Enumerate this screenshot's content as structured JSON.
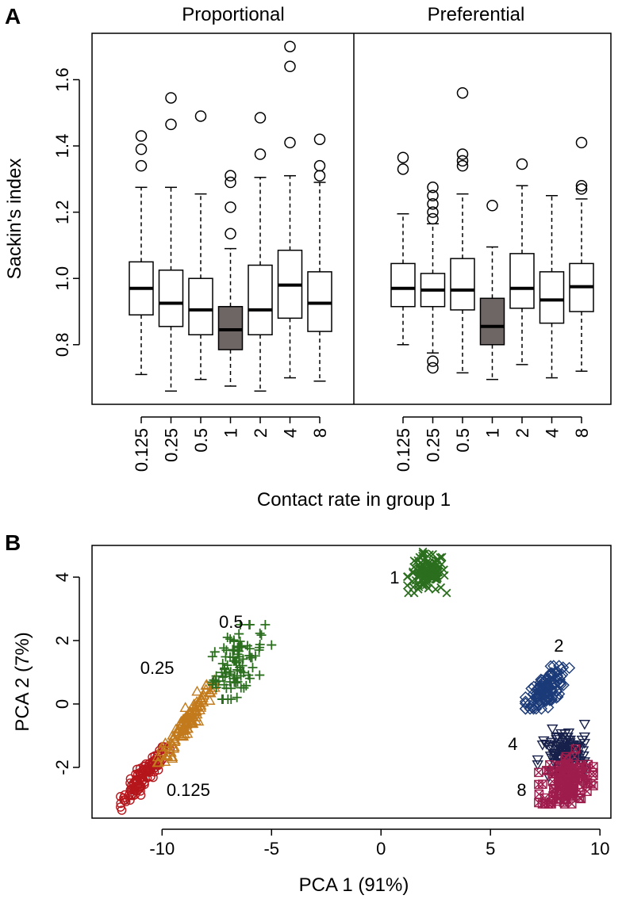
{
  "panel_a": {
    "label": "A",
    "facet_titles": [
      "Proportional",
      "Preferential"
    ]
  },
  "panel_b": {
    "label": "B"
  },
  "chart_data": [
    {
      "type": "boxplot",
      "panel": "A",
      "ylabel": "Sackin's index",
      "xlabel": "Contact rate in group 1",
      "ylim": [
        0.62,
        1.74
      ],
      "yticks": [
        "0.8",
        "1.0",
        "1.2",
        "1.4",
        "1.6"
      ],
      "ytick_values": [
        0.8,
        1.0,
        1.2,
        1.4,
        1.6
      ],
      "categories": [
        "0.125",
        "0.25",
        "0.5",
        "1",
        "2",
        "4",
        "8"
      ],
      "highlight_category": "1",
      "highlight_color": "#6e6565",
      "series": [
        {
          "name": "Proportional",
          "boxes": [
            {
              "whisker_low": 0.71,
              "q1": 0.89,
              "median": 0.97,
              "q3": 1.05,
              "whisker_high": 1.275,
              "outliers": [
                1.34,
                1.39,
                1.43
              ]
            },
            {
              "whisker_low": 0.66,
              "q1": 0.855,
              "median": 0.925,
              "q3": 1.025,
              "whisker_high": 1.275,
              "outliers": [
                1.465,
                1.545
              ]
            },
            {
              "whisker_low": 0.695,
              "q1": 0.83,
              "median": 0.905,
              "q3": 1.0,
              "whisker_high": 1.255,
              "outliers": [
                1.49
              ]
            },
            {
              "whisker_low": 0.675,
              "q1": 0.785,
              "median": 0.845,
              "q3": 0.915,
              "whisker_high": 1.09,
              "outliers": [
                1.135,
                1.215,
                1.29,
                1.31
              ]
            },
            {
              "whisker_low": 0.66,
              "q1": 0.83,
              "median": 0.905,
              "q3": 1.04,
              "whisker_high": 1.305,
              "outliers": [
                1.375,
                1.485
              ]
            },
            {
              "whisker_low": 0.7,
              "q1": 0.88,
              "median": 0.98,
              "q3": 1.085,
              "whisker_high": 1.31,
              "outliers": [
                1.41,
                1.64,
                1.7
              ]
            },
            {
              "whisker_low": 0.69,
              "q1": 0.84,
              "median": 0.925,
              "q3": 1.02,
              "whisker_high": 1.29,
              "outliers": [
                1.31,
                1.34,
                1.42
              ]
            }
          ]
        },
        {
          "name": "Preferential",
          "boxes": [
            {
              "whisker_low": 0.8,
              "q1": 0.915,
              "median": 0.97,
              "q3": 1.045,
              "whisker_high": 1.195,
              "outliers": [
                1.33,
                1.365
              ]
            },
            {
              "whisker_low": 0.775,
              "q1": 0.915,
              "median": 0.965,
              "q3": 1.015,
              "whisker_high": 1.165,
              "outliers": [
                0.73,
                0.75,
                1.18,
                1.2,
                1.225,
                1.25,
                1.275
              ]
            },
            {
              "whisker_low": 0.715,
              "q1": 0.905,
              "median": 0.965,
              "q3": 1.06,
              "whisker_high": 1.255,
              "outliers": [
                1.34,
                1.355,
                1.375,
                1.56
              ]
            },
            {
              "whisker_low": 0.695,
              "q1": 0.8,
              "median": 0.855,
              "q3": 0.94,
              "whisker_high": 1.095,
              "outliers": [
                1.22
              ]
            },
            {
              "whisker_low": 0.74,
              "q1": 0.91,
              "median": 0.97,
              "q3": 1.075,
              "whisker_high": 1.28,
              "outliers": [
                1.345
              ]
            },
            {
              "whisker_low": 0.7,
              "q1": 0.865,
              "median": 0.935,
              "q3": 1.02,
              "whisker_high": 1.25,
              "outliers": []
            },
            {
              "whisker_low": 0.72,
              "q1": 0.9,
              "median": 0.975,
              "q3": 1.045,
              "whisker_high": 1.24,
              "outliers": [
                1.27,
                1.28,
                1.41
              ]
            }
          ]
        }
      ]
    },
    {
      "type": "scatter",
      "panel": "B",
      "xlabel": "PCA 1 (91%)",
      "ylabel": "PCA 2 (7%)",
      "xlim": [
        -13.2,
        10.5
      ],
      "ylim": [
        -3.6,
        5.0
      ],
      "xticks": [
        "-10",
        "-5",
        "0",
        "5",
        "10"
      ],
      "xtick_values": [
        -10,
        -5,
        0,
        5,
        10
      ],
      "yticks": [
        "-2",
        "0",
        "2",
        "4"
      ],
      "ytick_values": [
        -2,
        0,
        2,
        4
      ],
      "series": [
        {
          "name": "0.125",
          "marker": "circle",
          "color": "#b5161b",
          "center": [
            -10.8,
            -2.25
          ],
          "spread": [
            1.6,
            1.2
          ],
          "rho": 0.92,
          "n": 110,
          "range_x": [
            -11.9,
            -9.6
          ],
          "range_y": [
            -3.35,
            -1.35
          ]
        },
        {
          "name": "0.25",
          "marker": "triangle-up",
          "color": "#c27a1c",
          "center": [
            -8.9,
            -0.6
          ],
          "spread": [
            1.4,
            1.3
          ],
          "rho": 0.93,
          "n": 110,
          "range_x": [
            -10.2,
            -7.6
          ],
          "range_y": [
            -1.85,
            0.75
          ]
        },
        {
          "name": "0.5",
          "marker": "plus",
          "color": "#2a6e1e",
          "center": [
            -6.6,
            1.3
          ],
          "spread": [
            1.3,
            1.1
          ],
          "rho": 0.45,
          "n": 90,
          "range_x": [
            -7.7,
            -5.0
          ],
          "range_y": [
            0.15,
            2.5
          ]
        },
        {
          "name": "1",
          "marker": "x",
          "color": "#2a6e1e",
          "center": [
            2.1,
            4.1
          ],
          "spread": [
            1.1,
            1.0
          ],
          "rho": 0.1,
          "n": 110,
          "range_x": [
            1.2,
            3.0
          ],
          "range_y": [
            3.5,
            4.8
          ]
        },
        {
          "name": "2",
          "marker": "diamond",
          "color": "#1b3a78",
          "center": [
            7.6,
            0.5
          ],
          "spread": [
            1.1,
            1.1
          ],
          "rho": 0.6,
          "n": 110,
          "range_x": [
            6.6,
            8.6
          ],
          "range_y": [
            -0.15,
            1.2
          ]
        },
        {
          "name": "4",
          "marker": "triangle-down",
          "color": "#17204a",
          "center": [
            8.3,
            -1.6
          ],
          "spread": [
            1.3,
            1.0
          ],
          "rho": 0.2,
          "n": 100,
          "range_x": [
            7.0,
            9.3
          ],
          "range_y": [
            -2.3,
            -0.6
          ]
        },
        {
          "name": "8",
          "marker": "square-x",
          "color": "#9e1d4c",
          "center": [
            8.5,
            -2.45
          ],
          "spread": [
            1.5,
            1.4
          ],
          "rho": 0.15,
          "n": 130,
          "range_x": [
            7.2,
            9.7
          ],
          "range_y": [
            -3.15,
            -1.35
          ]
        }
      ],
      "annotations": [
        {
          "text": "0.125",
          "x": -9.8,
          "y": -2.75
        },
        {
          "text": "0.25",
          "x": -11.0,
          "y": 1.1
        },
        {
          "text": "0.5",
          "x": -7.4,
          "y": 2.55
        },
        {
          "text": "1",
          "x": 0.4,
          "y": 3.95
        },
        {
          "text": "2",
          "x": 7.9,
          "y": 1.8
        },
        {
          "text": "4",
          "x": 5.8,
          "y": -1.3
        },
        {
          "text": "8",
          "x": 6.2,
          "y": -2.75
        }
      ]
    }
  ]
}
